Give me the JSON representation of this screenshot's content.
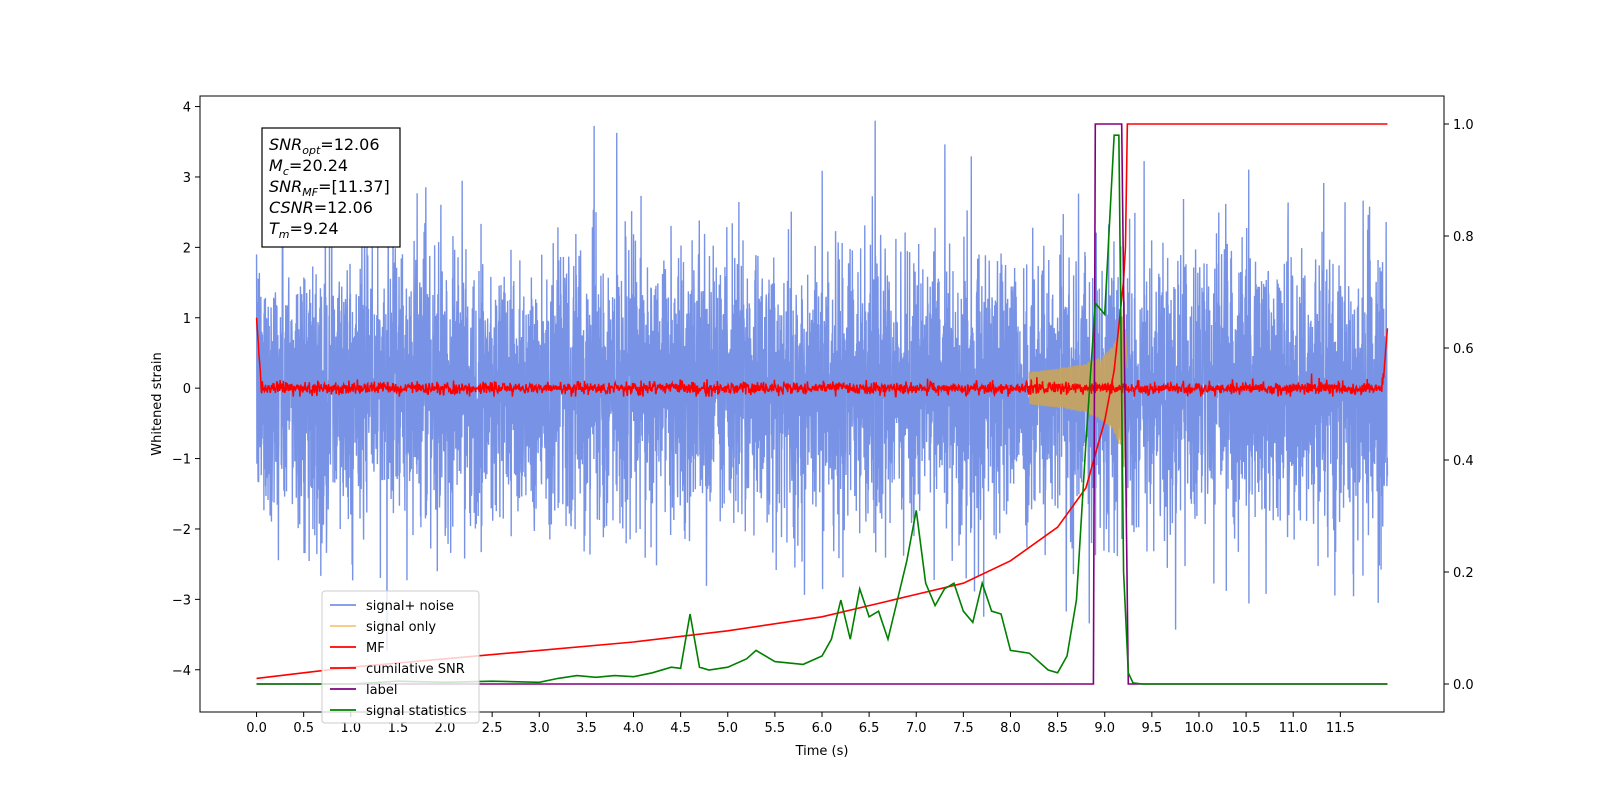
{
  "chart_data": {
    "type": "line",
    "xlabel": "Time (s)",
    "ylabel": "Whitened strain",
    "xlim": [
      -0.6,
      12.6
    ],
    "ylim": [
      -4.6,
      4.15
    ],
    "y2lim": [
      -0.05,
      1.05
    ],
    "xticks": [
      0.0,
      0.5,
      1.0,
      1.5,
      2.0,
      2.5,
      3.0,
      3.5,
      4.0,
      4.5,
      5.0,
      5.5,
      6.0,
      6.5,
      7.0,
      7.5,
      8.0,
      8.5,
      9.0,
      9.5,
      10.0,
      10.5,
      11.0,
      11.5
    ],
    "xtick_labels": [
      "0.0",
      "0.5",
      "1.0",
      "1.5",
      "2.0",
      "2.5",
      "3.0",
      "3.5",
      "4.0",
      "4.5",
      "5.0",
      "5.5",
      "6.0",
      "6.5",
      "7.0",
      "7.5",
      "8.0",
      "8.5",
      "9.0",
      "9.5",
      "10.0",
      "10.5",
      "11.0",
      "11.5"
    ],
    "yticks": [
      4,
      3,
      2,
      1,
      0,
      -1,
      -2,
      -3,
      -4
    ],
    "ytick_labels": [
      "4",
      "3",
      "2",
      "1",
      "0",
      "−1",
      "−2",
      "−3",
      "−4"
    ],
    "y2ticks": [
      1.0,
      0.8,
      0.6,
      0.4,
      0.2,
      0.0
    ],
    "y2tick_labels": [
      "1.0",
      "0.8",
      "0.6",
      "0.4",
      "0.2",
      "0.0"
    ],
    "legend_placement": "lower-left",
    "grid": false,
    "annotation": {
      "lines": [
        {
          "sym": "SNR",
          "sub": "opt",
          "rest": "=12.06"
        },
        {
          "sym": "M",
          "sub": "c",
          "rest": "=20.24"
        },
        {
          "sym": "SNR",
          "sub": "MF",
          "rest": "=[11.37]"
        },
        {
          "sym": "CSNR",
          "sub": "",
          "rest": "=12.06"
        },
        {
          "sym": "T",
          "sub": "m",
          "rest": "=9.24"
        }
      ]
    },
    "series": [
      {
        "name": "signal+ noise",
        "color": "#7893e6",
        "axis": "left",
        "kind": "noise",
        "t_range": [
          0.0,
          12.0
        ],
        "amplitude_envelope": 1.9,
        "max_abs": 3.8
      },
      {
        "name": "signal only",
        "color": "#f5c77a",
        "axis": "left",
        "kind": "chirp",
        "t_range": [
          0.0,
          9.24
        ],
        "peak_amplitude": 1.2,
        "peak_time": 9.2
      },
      {
        "name": "MF",
        "color": "#ff0000",
        "axis": "left",
        "kind": "mf",
        "t_range": [
          0.0,
          12.0
        ],
        "edge_values": [
          1.0,
          0.85
        ],
        "noise_amplitude": 0.12
      },
      {
        "name": "cumilative SNR",
        "color": "#ff0000",
        "axis": "right",
        "x": [
          0.0,
          1.0,
          2.0,
          3.0,
          4.0,
          5.0,
          6.0,
          6.5,
          7.0,
          7.5,
          8.0,
          8.5,
          8.8,
          9.0,
          9.1,
          9.2,
          9.22,
          9.24,
          9.3,
          12.0
        ],
        "y": [
          0.01,
          0.03,
          0.045,
          0.06,
          0.075,
          0.095,
          0.12,
          0.14,
          0.16,
          0.18,
          0.22,
          0.28,
          0.35,
          0.47,
          0.56,
          0.72,
          0.78,
          1.0,
          1.0,
          1.0
        ]
      },
      {
        "name": "label",
        "color": "#800080",
        "axis": "right",
        "x": [
          0.0,
          8.88,
          8.9,
          9.18,
          9.25,
          12.0
        ],
        "y": [
          0.0,
          0.0,
          1.0,
          1.0,
          0.0,
          0.0
        ]
      },
      {
        "name": "signal statistics",
        "color": "#008000",
        "axis": "right",
        "x": [
          0.0,
          0.5,
          1.0,
          1.5,
          2.0,
          2.5,
          3.0,
          3.2,
          3.4,
          3.6,
          3.8,
          4.0,
          4.2,
          4.4,
          4.5,
          4.6,
          4.7,
          4.8,
          5.0,
          5.2,
          5.3,
          5.5,
          5.8,
          6.0,
          6.1,
          6.2,
          6.3,
          6.4,
          6.5,
          6.6,
          6.7,
          6.8,
          6.9,
          7.0,
          7.1,
          7.2,
          7.3,
          7.4,
          7.5,
          7.6,
          7.7,
          7.8,
          7.9,
          8.0,
          8.2,
          8.4,
          8.5,
          8.6,
          8.7,
          8.8,
          8.9,
          9.0,
          9.1,
          9.15,
          9.2,
          9.25,
          9.3,
          9.4,
          10.0,
          11.0,
          12.0
        ],
        "y": [
          0.0,
          0.0,
          0.0,
          0.005,
          0.003,
          0.005,
          0.003,
          0.01,
          0.015,
          0.012,
          0.015,
          0.013,
          0.02,
          0.03,
          0.028,
          0.125,
          0.03,
          0.025,
          0.03,
          0.045,
          0.06,
          0.04,
          0.035,
          0.05,
          0.08,
          0.15,
          0.08,
          0.17,
          0.12,
          0.13,
          0.08,
          0.15,
          0.22,
          0.31,
          0.18,
          0.14,
          0.17,
          0.18,
          0.13,
          0.11,
          0.18,
          0.13,
          0.125,
          0.06,
          0.055,
          0.025,
          0.02,
          0.05,
          0.15,
          0.43,
          0.68,
          0.66,
          0.98,
          0.98,
          0.2,
          0.02,
          0.002,
          0.0,
          0.0,
          0.0,
          0.0
        ]
      }
    ]
  }
}
